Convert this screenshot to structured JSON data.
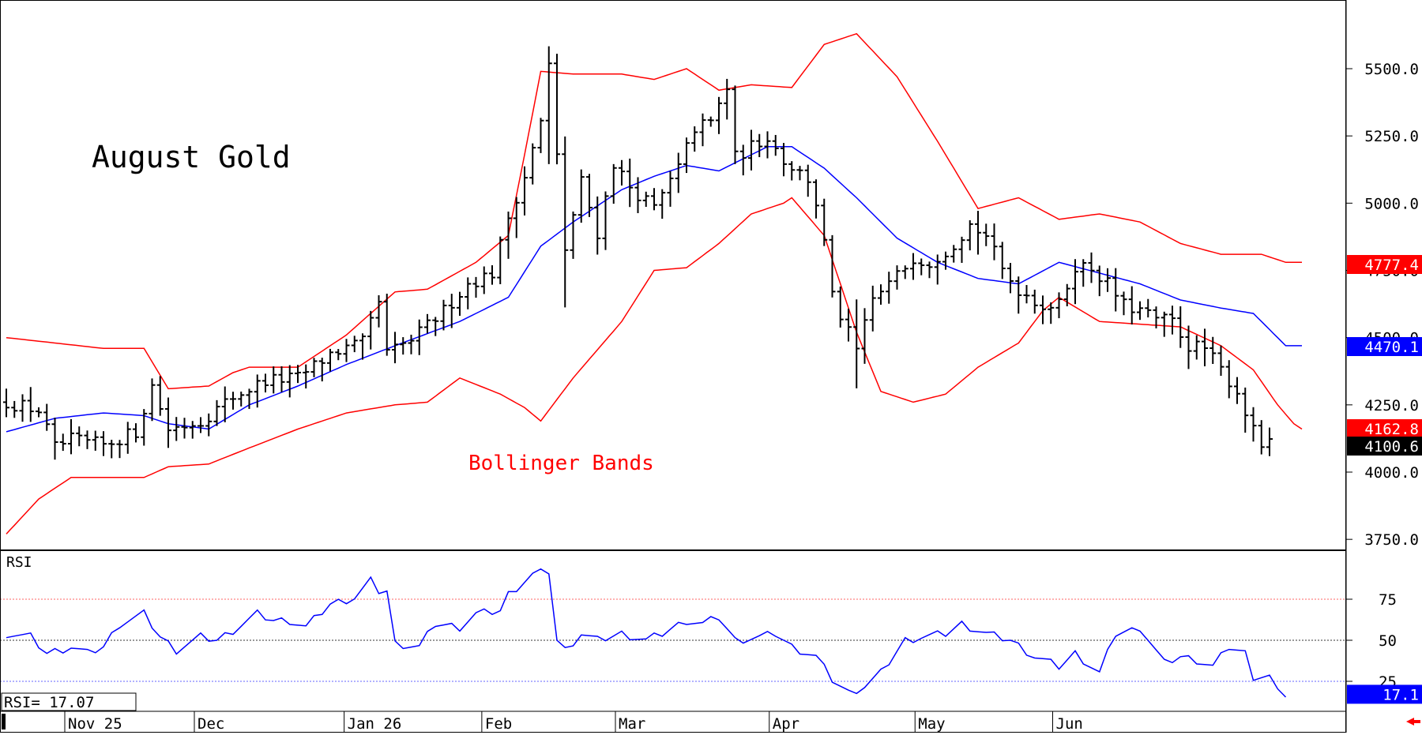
{
  "chart_data": [
    {
      "type": "ohlc",
      "title": "August Gold",
      "overlay_label": "Bollinger Bands",
      "y_ticks": [
        "5500.0",
        "5250.0",
        "5000.0",
        "4750.0",
        "4500.0",
        "4250.0",
        "4000.0",
        "3750.0"
      ],
      "ylim": [
        3720,
        5750
      ],
      "x_labels": [
        "Nov 25",
        "Dec",
        "Jan 26",
        "Feb",
        "Mar",
        "Apr",
        "May",
        "Jun"
      ],
      "last_values": [
        {
          "label": "4777.4",
          "color": "#ff0000"
        },
        {
          "label": "4470.1",
          "color": "#0000ff"
        },
        {
          "label": "4162.8",
          "color": "#ff0000"
        },
        {
          "label": "4100.6",
          "color": "#000000"
        }
      ],
      "upper_band_anchors": [
        [
          0,
          4500
        ],
        [
          6,
          4480
        ],
        [
          12,
          4460
        ],
        [
          17,
          4460
        ],
        [
          20,
          4310
        ],
        [
          25,
          4320
        ],
        [
          28,
          4370
        ],
        [
          30,
          4390
        ],
        [
          36,
          4390
        ],
        [
          42,
          4510
        ],
        [
          48,
          4670
        ],
        [
          52,
          4680
        ],
        [
          58,
          4780
        ],
        [
          62,
          4880
        ],
        [
          64,
          5180
        ],
        [
          66,
          5490
        ],
        [
          70,
          5480
        ],
        [
          76,
          5480
        ],
        [
          80,
          5460
        ],
        [
          84,
          5500
        ],
        [
          88,
          5420
        ],
        [
          92,
          5440
        ],
        [
          97,
          5430
        ],
        [
          101,
          5590
        ],
        [
          105,
          5630
        ],
        [
          110,
          5470
        ],
        [
          115,
          5230
        ],
        [
          120,
          4980
        ],
        [
          125,
          5020
        ],
        [
          130,
          4940
        ],
        [
          135,
          4960
        ],
        [
          140,
          4930
        ],
        [
          145,
          4850
        ],
        [
          150,
          4810
        ],
        [
          155,
          4810
        ],
        [
          158,
          4780
        ],
        [
          160,
          4780
        ]
      ],
      "middle_band_anchors": [
        [
          0,
          4150
        ],
        [
          6,
          4200
        ],
        [
          12,
          4220
        ],
        [
          17,
          4210
        ],
        [
          20,
          4180
        ],
        [
          25,
          4160
        ],
        [
          30,
          4250
        ],
        [
          36,
          4320
        ],
        [
          42,
          4400
        ],
        [
          48,
          4470
        ],
        [
          56,
          4560
        ],
        [
          62,
          4650
        ],
        [
          66,
          4840
        ],
        [
          70,
          4930
        ],
        [
          76,
          5050
        ],
        [
          80,
          5100
        ],
        [
          84,
          5140
        ],
        [
          88,
          5120
        ],
        [
          94,
          5210
        ],
        [
          97,
          5210
        ],
        [
          101,
          5130
        ],
        [
          105,
          5020
        ],
        [
          110,
          4870
        ],
        [
          115,
          4780
        ],
        [
          120,
          4720
        ],
        [
          125,
          4700
        ],
        [
          130,
          4780
        ],
        [
          135,
          4740
        ],
        [
          140,
          4700
        ],
        [
          145,
          4640
        ],
        [
          150,
          4610
        ],
        [
          154,
          4590
        ],
        [
          158,
          4470
        ],
        [
          160,
          4470
        ]
      ],
      "lower_band_anchors": [
        [
          0,
          3770
        ],
        [
          4,
          3900
        ],
        [
          8,
          3980
        ],
        [
          12,
          3980
        ],
        [
          17,
          3980
        ],
        [
          20,
          4020
        ],
        [
          25,
          4030
        ],
        [
          30,
          4090
        ],
        [
          36,
          4160
        ],
        [
          42,
          4220
        ],
        [
          48,
          4250
        ],
        [
          52,
          4260
        ],
        [
          56,
          4350
        ],
        [
          61,
          4290
        ],
        [
          64,
          4240
        ],
        [
          66,
          4190
        ],
        [
          70,
          4350
        ],
        [
          76,
          4560
        ],
        [
          80,
          4750
        ],
        [
          84,
          4760
        ],
        [
          88,
          4850
        ],
        [
          92,
          4960
        ],
        [
          96,
          5000
        ],
        [
          97,
          5020
        ],
        [
          101,
          4880
        ],
        [
          105,
          4520
        ],
        [
          108,
          4300
        ],
        [
          112,
          4260
        ],
        [
          116,
          4290
        ],
        [
          120,
          4390
        ],
        [
          125,
          4480
        ],
        [
          128,
          4600
        ],
        [
          130,
          4650
        ],
        [
          135,
          4560
        ],
        [
          140,
          4550
        ],
        [
          145,
          4540
        ],
        [
          150,
          4470
        ],
        [
          154,
          4380
        ],
        [
          157,
          4250
        ],
        [
          159,
          4180
        ],
        [
          160,
          4160
        ]
      ],
      "price_anchors": [
        [
          0,
          4260
        ],
        [
          4,
          4230
        ],
        [
          6,
          4090
        ],
        [
          8,
          4120
        ],
        [
          12,
          4100
        ],
        [
          16,
          4150
        ],
        [
          18,
          4320
        ],
        [
          20,
          4160
        ],
        [
          24,
          4190
        ],
        [
          28,
          4280
        ],
        [
          32,
          4340
        ],
        [
          36,
          4350
        ],
        [
          40,
          4440
        ],
        [
          44,
          4480
        ],
        [
          46,
          4630
        ],
        [
          47,
          4440
        ],
        [
          50,
          4490
        ],
        [
          54,
          4600
        ],
        [
          57,
          4700
        ],
        [
          60,
          4740
        ],
        [
          62,
          4950
        ],
        [
          64,
          5100
        ],
        [
          66,
          5300
        ],
        [
          67,
          5510
        ],
        [
          69,
          4830
        ],
        [
          71,
          5080
        ],
        [
          73,
          4890
        ],
        [
          75,
          5150
        ],
        [
          77,
          5060
        ],
        [
          80,
          4980
        ],
        [
          83,
          5130
        ],
        [
          85,
          5280
        ],
        [
          87,
          5300
        ],
        [
          89,
          5430
        ],
        [
          90,
          5170
        ],
        [
          94,
          5250
        ],
        [
          96,
          5160
        ],
        [
          99,
          5090
        ],
        [
          100,
          5000
        ],
        [
          101,
          4850
        ],
        [
          102,
          4650
        ],
        [
          103,
          4580
        ],
        [
          105,
          4450
        ],
        [
          107,
          4640
        ],
        [
          110,
          4730
        ],
        [
          112,
          4800
        ],
        [
          114,
          4780
        ],
        [
          117,
          4850
        ],
        [
          119,
          4920
        ],
        [
          121,
          4880
        ],
        [
          123,
          4750
        ],
        [
          125,
          4680
        ],
        [
          128,
          4620
        ],
        [
          130,
          4620
        ],
        [
          132,
          4770
        ],
        [
          134,
          4760
        ],
        [
          136,
          4700
        ],
        [
          138,
          4620
        ],
        [
          140,
          4600
        ],
        [
          142,
          4570
        ],
        [
          144,
          4560
        ],
        [
          146,
          4470
        ],
        [
          148,
          4460
        ],
        [
          150,
          4380
        ],
        [
          152,
          4300
        ],
        [
          154,
          4150
        ],
        [
          155,
          4100
        ],
        [
          156,
          4100
        ]
      ],
      "bar_count": 157
    },
    {
      "type": "line",
      "indicator": "RSI",
      "label": "RSI",
      "readout": "RSI=    17.07",
      "y_ticks": [
        "75",
        "50",
        "25"
      ],
      "ylim": [
        8,
        95
      ],
      "levels": [
        75,
        50,
        25
      ],
      "last_value": "17.1",
      "anchors": [
        [
          0,
          54
        ],
        [
          3,
          52
        ],
        [
          5,
          42
        ],
        [
          8,
          46
        ],
        [
          10,
          42
        ],
        [
          12,
          46
        ],
        [
          14,
          60
        ],
        [
          17,
          66
        ],
        [
          19,
          52
        ],
        [
          21,
          44
        ],
        [
          24,
          52
        ],
        [
          26,
          50
        ],
        [
          28,
          56
        ],
        [
          31,
          66
        ],
        [
          33,
          62
        ],
        [
          35,
          62
        ],
        [
          37,
          58
        ],
        [
          40,
          72
        ],
        [
          43,
          76
        ],
        [
          45,
          86
        ],
        [
          46,
          80
        ],
        [
          47,
          80
        ],
        [
          48,
          48
        ],
        [
          51,
          46
        ],
        [
          53,
          60
        ],
        [
          56,
          58
        ],
        [
          58,
          66
        ],
        [
          61,
          68
        ],
        [
          62,
          78
        ],
        [
          65,
          90
        ],
        [
          67,
          92
        ],
        [
          68,
          50
        ],
        [
          69,
          44
        ],
        [
          71,
          54
        ],
        [
          73,
          50
        ],
        [
          76,
          54
        ],
        [
          79,
          50
        ],
        [
          81,
          54
        ],
        [
          84,
          62
        ],
        [
          86,
          60
        ],
        [
          88,
          64
        ],
        [
          90,
          50
        ],
        [
          93,
          52
        ],
        [
          95,
          54
        ],
        [
          97,
          46
        ],
        [
          100,
          40
        ],
        [
          102,
          26
        ],
        [
          104,
          18
        ],
        [
          106,
          22
        ],
        [
          108,
          30
        ],
        [
          111,
          50
        ],
        [
          113,
          52
        ],
        [
          116,
          54
        ],
        [
          118,
          60
        ],
        [
          121,
          54
        ],
        [
          124,
          50
        ],
        [
          127,
          40
        ],
        [
          130,
          34
        ],
        [
          132,
          42
        ],
        [
          135,
          30
        ],
        [
          137,
          54
        ],
        [
          139,
          56
        ],
        [
          140,
          58
        ],
        [
          143,
          36
        ],
        [
          145,
          40
        ],
        [
          147,
          38
        ],
        [
          149,
          34
        ],
        [
          151,
          46
        ],
        [
          153,
          42
        ],
        [
          154,
          28
        ],
        [
          156,
          28
        ],
        [
          157,
          18
        ],
        [
          158,
          17
        ]
      ]
    }
  ]
}
